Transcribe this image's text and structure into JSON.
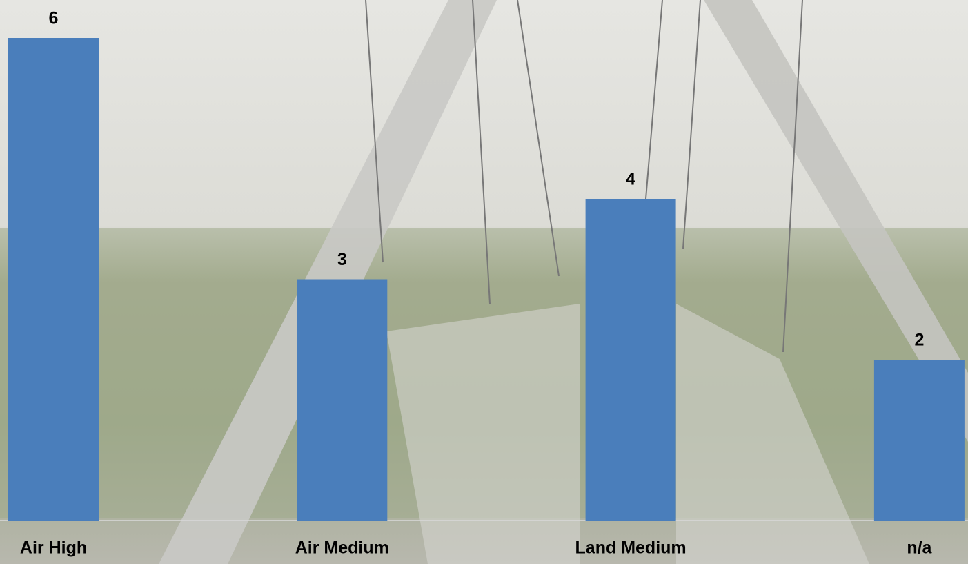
{
  "chart_data": {
    "type": "bar",
    "categories": [
      "Air High",
      "Air Medium",
      "Land Medium",
      "n/a"
    ],
    "values": [
      6,
      3,
      4,
      2
    ],
    "color": "#4a7ebb",
    "ylim": [
      0,
      6
    ]
  }
}
